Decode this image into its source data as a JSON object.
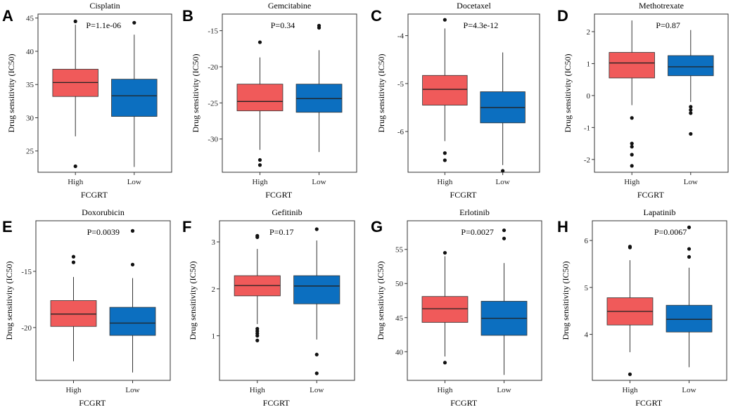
{
  "figure": {
    "x_axis_title": "FCGRT",
    "y_axis_title": "Drug sensitivity (IC50)"
  },
  "chart_data": [
    {
      "type": "box",
      "panel": "A",
      "title": "Cisplatin",
      "pvalue": "P=1.1e-06",
      "xlabel": "FCGRT",
      "ylabel": "Drug sensitivity (IC50)",
      "ylim": [
        21.8,
        45.6
      ],
      "yticks": [
        25,
        30,
        35,
        40,
        45
      ],
      "groups": [
        {
          "name": "High",
          "color": "#f05a5a",
          "min": 27.2,
          "q1": 33.2,
          "median": 35.3,
          "q3": 37.3,
          "max": 44.0,
          "outliers": [
            44.5,
            22.7
          ]
        },
        {
          "name": "Low",
          "color": "#0c6fc0",
          "min": 22.6,
          "q1": 30.2,
          "median": 33.3,
          "q3": 35.8,
          "max": 42.5,
          "outliers": [
            44.3
          ]
        }
      ]
    },
    {
      "type": "box",
      "panel": "B",
      "title": "Gemcitabine",
      "pvalue": "P=0.34",
      "xlabel": "FCGRT",
      "ylabel": "Drug sensitivity (IC50)",
      "ylim": [
        -34.6,
        -12.7
      ],
      "yticks": [
        -15,
        -20,
        -25,
        -30
      ],
      "groups": [
        {
          "name": "High",
          "color": "#f05a5a",
          "min": -31.5,
          "q1": -26.1,
          "median": -24.8,
          "q3": -22.4,
          "max": -18.7,
          "outliers": [
            -16.6,
            -32.9,
            -33.6
          ]
        },
        {
          "name": "Low",
          "color": "#0c6fc0",
          "min": -31.8,
          "q1": -26.3,
          "median": -24.4,
          "q3": -22.4,
          "max": -17.7,
          "outliers": [
            -14.3,
            -14.6
          ]
        }
      ]
    },
    {
      "type": "box",
      "panel": "C",
      "title": "Docetaxel",
      "pvalue": "P=4.3e-12",
      "xlabel": "FCGRT",
      "ylabel": "Drug sensitivity (IC50)",
      "ylim": [
        -6.85,
        -3.55
      ],
      "yticks": [
        -4,
        -5,
        -6
      ],
      "groups": [
        {
          "name": "High",
          "color": "#f05a5a",
          "min": -6.2,
          "q1": -5.45,
          "median": -5.12,
          "q3": -4.83,
          "max": -3.85,
          "outliers": [
            -3.67,
            -6.45,
            -6.6
          ]
        },
        {
          "name": "Low",
          "color": "#0c6fc0",
          "min": -6.7,
          "q1": -5.82,
          "median": -5.5,
          "q3": -5.17,
          "max": -4.35,
          "outliers": [
            -6.82
          ]
        }
      ]
    },
    {
      "type": "box",
      "panel": "D",
      "title": "Methotrexate",
      "pvalue": "P=0.87",
      "xlabel": "FCGRT",
      "ylabel": "Drug sensitivity (IC50)",
      "ylim": [
        -2.4,
        2.55
      ],
      "yticks": [
        2,
        1,
        0,
        -1,
        -2
      ],
      "groups": [
        {
          "name": "High",
          "color": "#f05a5a",
          "min": -0.3,
          "q1": 0.55,
          "median": 1.02,
          "q3": 1.35,
          "max": 2.35,
          "outliers": [
            -0.7,
            -1.5,
            -1.6,
            -1.85,
            -2.2
          ]
        },
        {
          "name": "Low",
          "color": "#0c6fc0",
          "min": -0.2,
          "q1": 0.62,
          "median": 0.9,
          "q3": 1.25,
          "max": 2.05,
          "outliers": [
            -0.35,
            -0.45,
            -0.55,
            -1.2
          ]
        }
      ]
    },
    {
      "type": "box",
      "panel": "E",
      "title": "Doxorubicin",
      "pvalue": "P=0.0039",
      "xlabel": "FCGRT",
      "ylabel": "Drug sensitivity (IC50)",
      "ylim": [
        -24.7,
        -10.5
      ],
      "yticks": [
        -15,
        -20
      ],
      "groups": [
        {
          "name": "High",
          "color": "#f05a5a",
          "min": -23.0,
          "q1": -19.9,
          "median": -18.8,
          "q3": -17.6,
          "max": -15.5,
          "outliers": [
            -13.7,
            -14.2
          ]
        },
        {
          "name": "Low",
          "color": "#0c6fc0",
          "min": -24.0,
          "q1": -20.7,
          "median": -19.6,
          "q3": -18.2,
          "max": -15.6,
          "outliers": [
            -11.4,
            -14.4
          ]
        }
      ]
    },
    {
      "type": "box",
      "panel": "F",
      "title": "Gefitinib",
      "pvalue": "P=0.17",
      "xlabel": "FCGRT",
      "ylabel": "Drug sensitivity (IC50)",
      "ylim": [
        0.05,
        3.45
      ],
      "yticks": [
        3,
        2,
        1
      ],
      "groups": [
        {
          "name": "High",
          "color": "#f05a5a",
          "min": 1.25,
          "q1": 1.85,
          "median": 2.07,
          "q3": 2.28,
          "max": 2.85,
          "outliers": [
            3.13,
            3.1,
            1.15,
            1.1,
            1.05,
            1.0,
            0.9
          ]
        },
        {
          "name": "Low",
          "color": "#0c6fc0",
          "min": 0.92,
          "q1": 1.68,
          "median": 2.06,
          "q3": 2.28,
          "max": 3.03,
          "outliers": [
            3.27,
            0.6,
            0.2
          ]
        }
      ]
    },
    {
      "type": "box",
      "panel": "G",
      "title": "Erlotinib",
      "pvalue": "P=0.0027",
      "xlabel": "FCGRT",
      "ylabel": "Drug sensitivity (IC50)",
      "ylim": [
        35.8,
        59.2
      ],
      "yticks": [
        55,
        50,
        45,
        40
      ],
      "groups": [
        {
          "name": "High",
          "color": "#f05a5a",
          "min": 39.3,
          "q1": 44.3,
          "median": 46.3,
          "q3": 48.1,
          "max": 54.0,
          "outliers": [
            54.5,
            38.4
          ]
        },
        {
          "name": "Low",
          "color": "#0c6fc0",
          "min": 36.6,
          "q1": 42.4,
          "median": 44.9,
          "q3": 47.4,
          "max": 53.0,
          "outliers": [
            57.8,
            56.6
          ]
        }
      ]
    },
    {
      "type": "box",
      "panel": "H",
      "title": "Lapatinib",
      "pvalue": "P=0.0067",
      "xlabel": "FCGRT",
      "ylabel": "Drug sensitivity (IC50)",
      "ylim": [
        3.02,
        6.42
      ],
      "yticks": [
        6,
        5,
        4
      ],
      "groups": [
        {
          "name": "High",
          "color": "#f05a5a",
          "min": 3.62,
          "q1": 4.2,
          "median": 4.49,
          "q3": 4.78,
          "max": 5.58,
          "outliers": [
            5.87,
            5.85,
            3.15
          ]
        },
        {
          "name": "Low",
          "color": "#0c6fc0",
          "min": 3.3,
          "q1": 4.05,
          "median": 4.32,
          "q3": 4.62,
          "max": 5.42,
          "outliers": [
            6.28,
            5.82,
            5.65
          ]
        }
      ]
    }
  ]
}
